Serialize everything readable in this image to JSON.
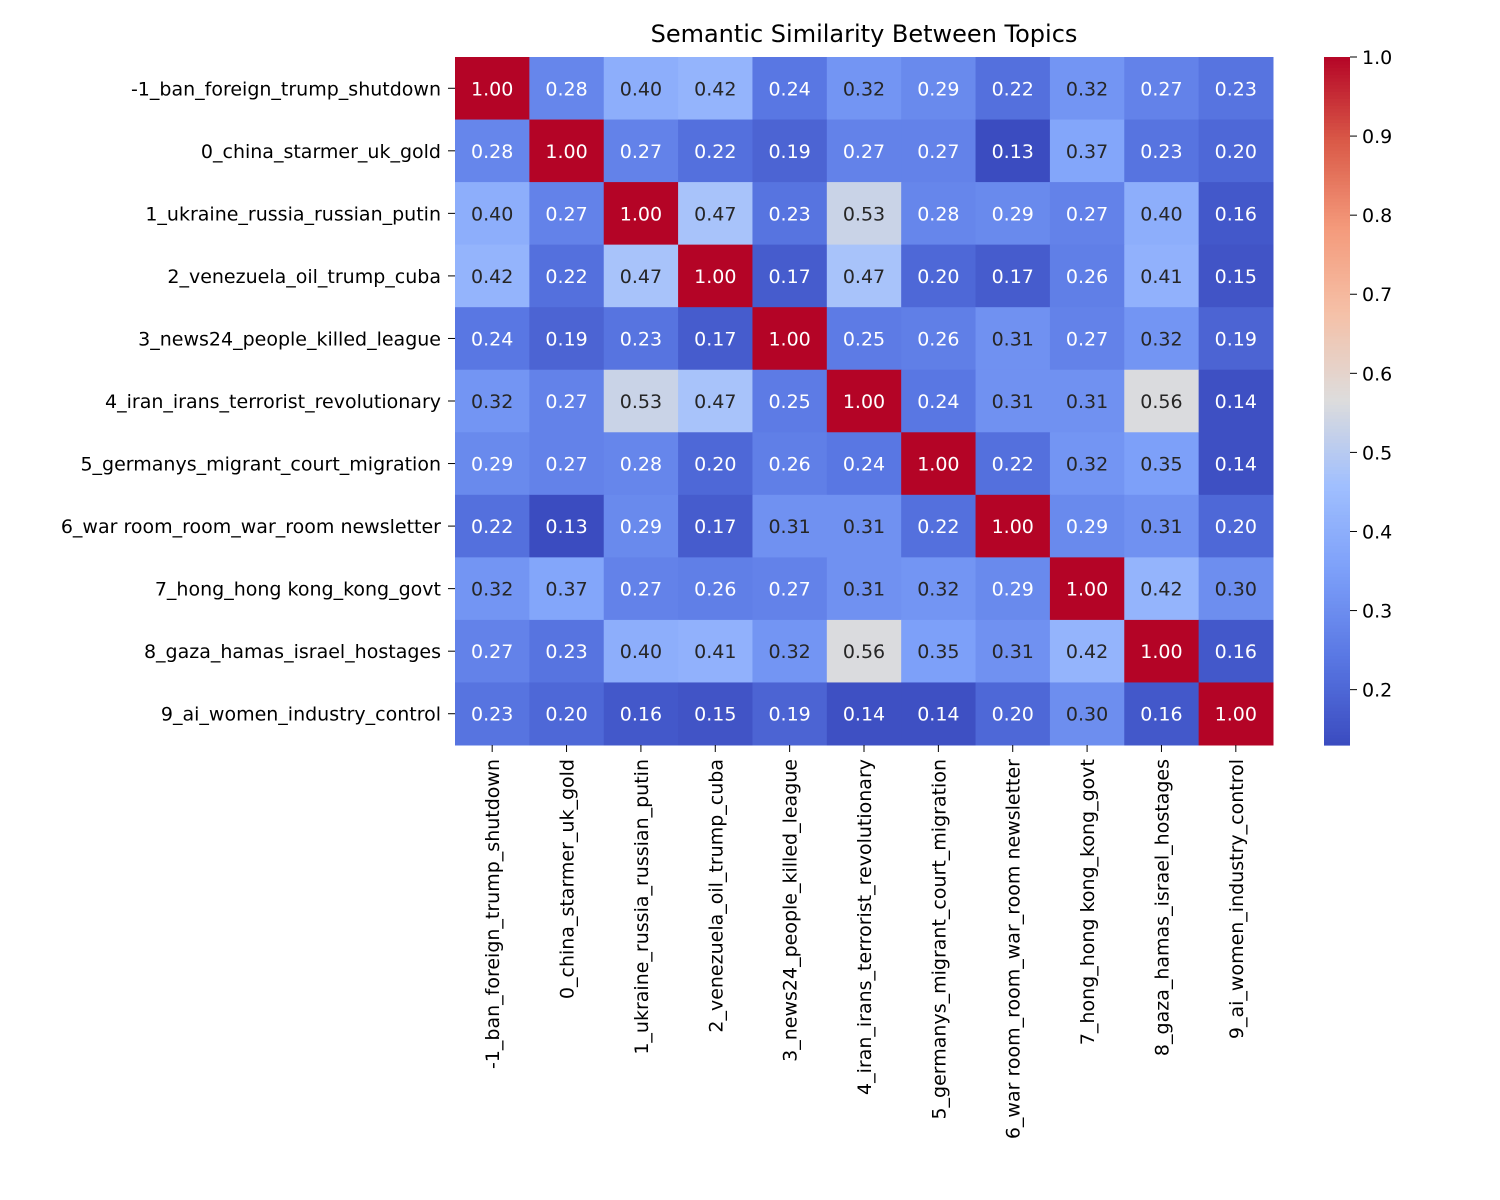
{
  "chart_data": {
    "type": "heatmap",
    "title": "Semantic Similarity Between Topics",
    "xlabel": "",
    "ylabel": "",
    "colormap": "coolwarm",
    "vmin": 0.13,
    "vmax": 1.0,
    "colorbar_ticks": [
      "0.2",
      "0.3",
      "0.4",
      "0.5",
      "0.6",
      "0.7",
      "0.8",
      "0.9",
      "1.0"
    ],
    "labels": [
      "-1_ban_foreign_trump_shutdown",
      "0_china_starmer_uk_gold",
      "1_ukraine_russia_russian_putin",
      "2_venezuela_oil_trump_cuba",
      "3_news24_people_killed_league",
      "4_iran_irans_terrorist_revolutionary",
      "5_germanys_migrant_court_migration",
      "6_war room_room_war_room newsletter",
      "7_hong_hong kong_kong_govt",
      "8_gaza_hamas_israel_hostages",
      "9_ai_women_industry_control"
    ],
    "values": [
      [
        1.0,
        0.28,
        0.4,
        0.42,
        0.24,
        0.32,
        0.29,
        0.22,
        0.32,
        0.27,
        0.23
      ],
      [
        0.28,
        1.0,
        0.27,
        0.22,
        0.19,
        0.27,
        0.27,
        0.13,
        0.37,
        0.23,
        0.2
      ],
      [
        0.4,
        0.27,
        1.0,
        0.47,
        0.23,
        0.53,
        0.28,
        0.29,
        0.27,
        0.4,
        0.16
      ],
      [
        0.42,
        0.22,
        0.47,
        1.0,
        0.17,
        0.47,
        0.2,
        0.17,
        0.26,
        0.41,
        0.15
      ],
      [
        0.24,
        0.19,
        0.23,
        0.17,
        1.0,
        0.25,
        0.26,
        0.31,
        0.27,
        0.32,
        0.19
      ],
      [
        0.32,
        0.27,
        0.53,
        0.47,
        0.25,
        1.0,
        0.24,
        0.31,
        0.31,
        0.56,
        0.14
      ],
      [
        0.29,
        0.27,
        0.28,
        0.2,
        0.26,
        0.24,
        1.0,
        0.22,
        0.32,
        0.35,
        0.14
      ],
      [
        0.22,
        0.13,
        0.29,
        0.17,
        0.31,
        0.31,
        0.22,
        1.0,
        0.29,
        0.31,
        0.2
      ],
      [
        0.32,
        0.37,
        0.27,
        0.26,
        0.27,
        0.31,
        0.32,
        0.29,
        1.0,
        0.42,
        0.3
      ],
      [
        0.27,
        0.23,
        0.4,
        0.41,
        0.32,
        0.56,
        0.35,
        0.31,
        0.42,
        1.0,
        0.16
      ],
      [
        0.23,
        0.2,
        0.16,
        0.15,
        0.19,
        0.14,
        0.14,
        0.2,
        0.3,
        0.16,
        1.0
      ]
    ]
  }
}
